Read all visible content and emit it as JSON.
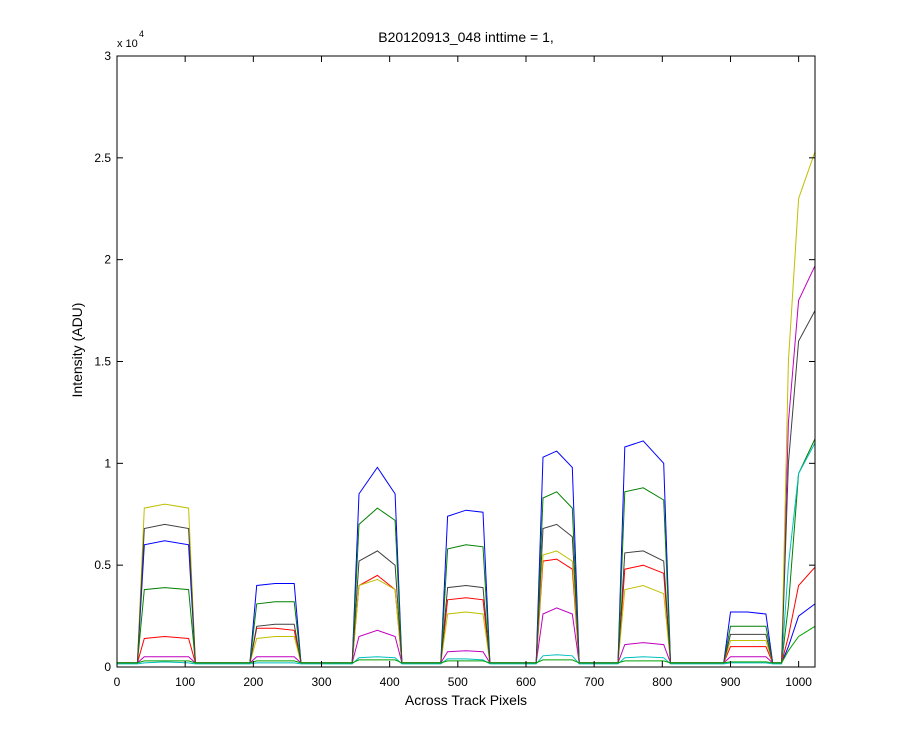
{
  "chart_data": {
    "type": "line",
    "title": "B20120913_048 inttime = 1,",
    "x_label": "Across Track Pixels",
    "y_label": "Intensity (ADU)",
    "y_multiplier": "x 10",
    "y_exponent": "4",
    "xlim": [
      0,
      1024
    ],
    "ylim": [
      0,
      30000
    ],
    "xticks": [
      0,
      100,
      200,
      300,
      400,
      500,
      600,
      700,
      800,
      900,
      1000
    ],
    "yticks": [
      {
        "value": 0,
        "label": "0"
      },
      {
        "value": 5000,
        "label": "0.5"
      },
      {
        "value": 10000,
        "label": "1"
      },
      {
        "value": 15000,
        "label": "1.5"
      },
      {
        "value": 20000,
        "label": "2"
      },
      {
        "value": 25000,
        "label": "2.5"
      },
      {
        "value": 30000,
        "label": "3"
      }
    ],
    "grid": false,
    "x": [
      0,
      30,
      40,
      70,
      105,
      115,
      195,
      205,
      232,
      260,
      270,
      345,
      355,
      382,
      408,
      418,
      475,
      485,
      512,
      537,
      547,
      615,
      625,
      645,
      668,
      678,
      735,
      745,
      772,
      802,
      812,
      890,
      900,
      925,
      952,
      962,
      975,
      985,
      1000,
      1024
    ],
    "series": [
      {
        "color": "#0000ff",
        "values": [
          200,
          200,
          6000,
          6200,
          6000,
          200,
          200,
          4000,
          4100,
          4100,
          200,
          200,
          8500,
          9800,
          8500,
          200,
          200,
          7400,
          7700,
          7600,
          200,
          200,
          10300,
          10600,
          9800,
          200,
          200,
          10800,
          11100,
          10000,
          200,
          200,
          2700,
          2700,
          2600,
          200,
          200,
          1000,
          2500,
          3100
        ]
      },
      {
        "color": "#008000",
        "values": [
          200,
          200,
          3800,
          3900,
          3800,
          200,
          200,
          3100,
          3200,
          3200,
          200,
          200,
          7000,
          7800,
          7200,
          200,
          200,
          5800,
          6000,
          5900,
          200,
          200,
          8300,
          8600,
          7800,
          200,
          200,
          8600,
          8800,
          8200,
          200,
          200,
          2000,
          2000,
          2000,
          200,
          200,
          3000,
          9500,
          11200
        ]
      },
      {
        "color": "#ff0000",
        "values": [
          200,
          200,
          1400,
          1500,
          1400,
          200,
          200,
          1900,
          1900,
          1800,
          200,
          200,
          4000,
          4500,
          3800,
          200,
          200,
          3300,
          3400,
          3300,
          200,
          200,
          5200,
          5300,
          4800,
          200,
          200,
          4800,
          5000,
          4600,
          200,
          200,
          1000,
          1000,
          1000,
          200,
          200,
          1500,
          4000,
          4900
        ]
      },
      {
        "color": "#00bfbf",
        "values": [
          150,
          150,
          200,
          250,
          200,
          150,
          150,
          200,
          200,
          200,
          150,
          150,
          450,
          500,
          450,
          150,
          150,
          400,
          400,
          350,
          150,
          150,
          550,
          600,
          550,
          150,
          150,
          450,
          500,
          450,
          150,
          150,
          200,
          200,
          200,
          150,
          150,
          5000,
          9500,
          11000
        ]
      },
      {
        "color": "#bf00bf",
        "values": [
          200,
          200,
          500,
          500,
          500,
          200,
          200,
          500,
          500,
          500,
          200,
          200,
          1500,
          1800,
          1500,
          200,
          200,
          750,
          800,
          750,
          200,
          200,
          2600,
          2900,
          2600,
          200,
          200,
          1100,
          1200,
          1100,
          200,
          200,
          500,
          500,
          500,
          200,
          200,
          12000,
          18000,
          19700
        ]
      },
      {
        "color": "#bfbf00",
        "values": [
          200,
          200,
          7800,
          8000,
          7800,
          200,
          200,
          1400,
          1500,
          1500,
          200,
          200,
          4000,
          4300,
          3800,
          200,
          200,
          2600,
          2700,
          2600,
          200,
          200,
          5500,
          5700,
          5200,
          200,
          200,
          3800,
          4000,
          3600,
          200,
          200,
          1300,
          1300,
          1300,
          200,
          200,
          15000,
          23000,
          25300
        ]
      },
      {
        "color": "#404040",
        "values": [
          200,
          200,
          6800,
          7000,
          6800,
          200,
          200,
          2000,
          2100,
          2100,
          200,
          200,
          5200,
          5700,
          5000,
          200,
          200,
          3900,
          4000,
          3900,
          200,
          200,
          6800,
          7000,
          6400,
          200,
          200,
          5600,
          5700,
          5200,
          200,
          200,
          1600,
          1600,
          1600,
          200,
          200,
          10000,
          16000,
          17500
        ]
      },
      {
        "color": "#00a000",
        "values": [
          200,
          200,
          300,
          300,
          300,
          200,
          200,
          300,
          300,
          300,
          200,
          200,
          350,
          350,
          350,
          200,
          200,
          300,
          300,
          300,
          200,
          200,
          350,
          350,
          350,
          200,
          200,
          300,
          300,
          300,
          200,
          200,
          250,
          250,
          250,
          200,
          200,
          800,
          1500,
          2000
        ]
      }
    ]
  }
}
